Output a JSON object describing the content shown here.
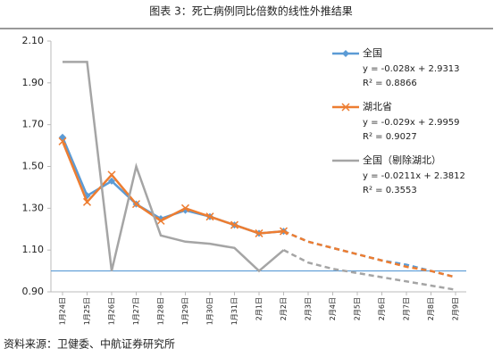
{
  "chart_data": {
    "type": "line",
    "title": "图表 3：死亡病例同比倍数的线性外推结果",
    "source": "资料来源：卫健委、中航证券研究所",
    "categories": [
      "1月24日",
      "1月25日",
      "1月26日",
      "1月27日",
      "1月28日",
      "1月29日",
      "1月30日",
      "1月31日",
      "2月1日",
      "2月2日",
      "2月3日",
      "2月4日",
      "2月5日",
      "2月6日",
      "2月7日",
      "2月8日",
      "2月9日"
    ],
    "forecast_start": 9,
    "hline": 1.0,
    "hline_color": "#5b9bd5",
    "ylim": [
      0.9,
      2.1
    ],
    "yticks": [
      {
        "value": 0.9,
        "label": "0.90"
      },
      {
        "value": 1.1,
        "label": "1.10"
      },
      {
        "value": 1.3,
        "label": "1.30"
      },
      {
        "value": 1.5,
        "label": "1.50"
      },
      {
        "value": 1.7,
        "label": "1.70"
      },
      {
        "value": 1.9,
        "label": "1.90"
      },
      {
        "value": 2.1,
        "label": "2.10"
      }
    ],
    "series": [
      {
        "name": "全国",
        "color": "#5b9bd5",
        "marker": "diamond",
        "equation": "y = -0.028x + 2.9313",
        "r2": "R² = 0.8866",
        "values": [
          1.64,
          1.36,
          1.43,
          1.32,
          1.25,
          1.29,
          1.26,
          1.22,
          1.18,
          1.19,
          1.14,
          1.11,
          1.08,
          1.05,
          1.03,
          1.0,
          0.97
        ]
      },
      {
        "name": "湖北省",
        "color": "#ed7d31",
        "marker": "x",
        "equation": "y = -0.029x + 2.9959",
        "r2": "R² = 0.9027",
        "values": [
          1.62,
          1.33,
          1.46,
          1.32,
          1.24,
          1.3,
          1.26,
          1.22,
          1.18,
          1.19,
          1.14,
          1.11,
          1.08,
          1.05,
          1.02,
          1.0,
          0.97
        ]
      },
      {
        "name": "全国（剔除湖北）",
        "color": "#a5a5a5",
        "marker": "none",
        "equation": "y = -0.0211x + 2.3812",
        "r2": "R² = 0.3553",
        "values": [
          2.0,
          2.0,
          1.0,
          1.5,
          1.17,
          1.14,
          1.13,
          1.11,
          1.0,
          1.1,
          1.04,
          1.01,
          0.99,
          0.97,
          0.95,
          0.93,
          0.91
        ]
      }
    ]
  }
}
